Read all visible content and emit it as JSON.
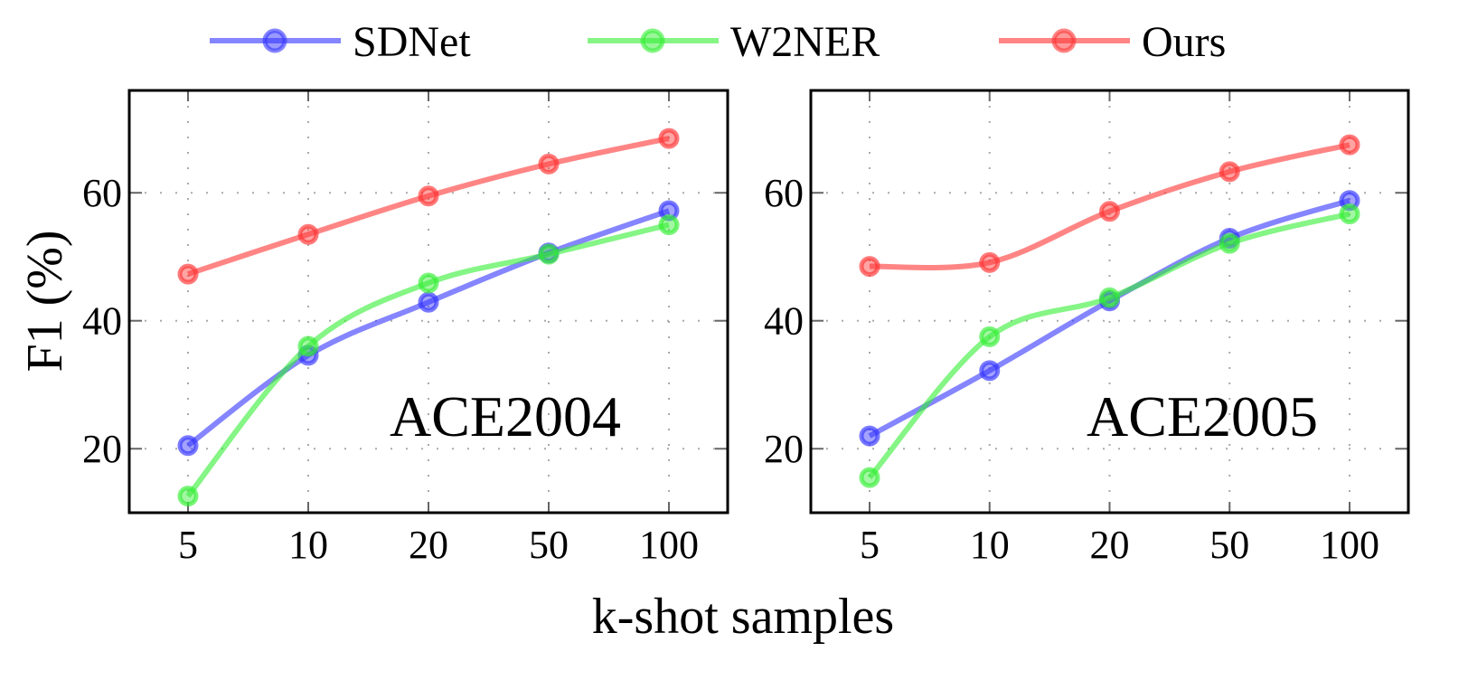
{
  "chart_data": [
    {
      "type": "line",
      "annotation": "ACE2004",
      "categories": [
        "5",
        "10",
        "20",
        "50",
        "100"
      ],
      "xlabel": "k-shot samples",
      "ylabel": "F1 (%)",
      "ylim": [
        10,
        76
      ],
      "yticks": [
        20,
        40,
        60
      ],
      "grid": true,
      "series": [
        {
          "name": "SDNet",
          "color": "#3333ff",
          "values": [
            20.5,
            34.6,
            42.9,
            50.6,
            57.2
          ]
        },
        {
          "name": "W2NER",
          "color": "#33ee33",
          "values": [
            12.6,
            36.0,
            45.9,
            50.4,
            55.0
          ]
        },
        {
          "name": "Ours",
          "color": "#ff3333",
          "values": [
            47.3,
            53.5,
            59.5,
            64.5,
            68.5
          ]
        }
      ]
    },
    {
      "type": "line",
      "annotation": "ACE2005",
      "categories": [
        "5",
        "10",
        "20",
        "50",
        "100"
      ],
      "xlabel": "k-shot samples",
      "ylabel": "F1 (%)",
      "ylim": [
        10,
        76
      ],
      "yticks": [
        20,
        40,
        60
      ],
      "grid": true,
      "series": [
        {
          "name": "SDNet",
          "color": "#3333ff",
          "values": [
            22.0,
            32.2,
            43.1,
            52.9,
            58.8
          ]
        },
        {
          "name": "W2NER",
          "color": "#33ee33",
          "values": [
            15.5,
            37.5,
            43.6,
            52.1,
            56.7
          ]
        },
        {
          "name": "Ours",
          "color": "#ff3333",
          "values": [
            48.5,
            49.1,
            57.1,
            63.3,
            67.5
          ]
        }
      ]
    }
  ],
  "legend": {
    "placement": "top",
    "items": [
      "SDNet",
      "W2NER",
      "Ours"
    ]
  },
  "labels": {
    "ylabel": "F1 (%)",
    "xlabel": "k-shot samples"
  }
}
